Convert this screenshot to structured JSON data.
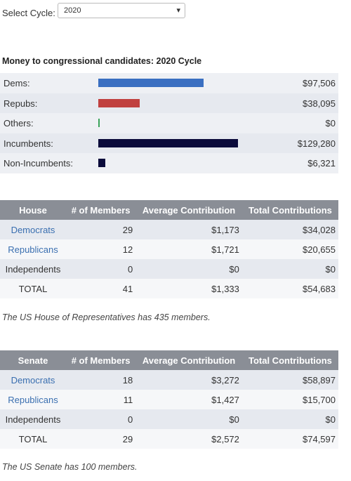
{
  "select": {
    "label": "Select Cycle:",
    "value": "2020"
  },
  "summary": {
    "title": "Money to congressional candidates: 2020 Cycle",
    "rows": [
      {
        "name": "Dems:",
        "value": 97506,
        "value_label": "$97,506",
        "color": "#3a6fc1"
      },
      {
        "name": "Repubs:",
        "value": 38095,
        "value_label": "$38,095",
        "color": "#c0403f"
      },
      {
        "name": "Others:",
        "value": 0,
        "value_label": "$0",
        "color": "#3aa35a"
      },
      {
        "name": "Incumbents:",
        "value": 129280,
        "value_label": "$129,280",
        "color": "#0b0b3b"
      },
      {
        "name": "Non-Incumbents:",
        "value": 6321,
        "value_label": "$6,321",
        "color": "#0b0b3b"
      }
    ]
  },
  "house": {
    "header": [
      "House",
      "# of Members",
      "Average Contribution",
      "Total Contributions"
    ],
    "rows": [
      [
        "Democrats",
        "29",
        "$1,173",
        "$34,028"
      ],
      [
        "Republicans",
        "12",
        "$1,721",
        "$20,655"
      ],
      [
        "Independents",
        "0",
        "$0",
        "$0"
      ],
      [
        "TOTAL",
        "41",
        "$1,333",
        "$54,683"
      ]
    ],
    "note": "The US House of Representatives has 435 members."
  },
  "senate": {
    "header": [
      "Senate",
      "# of Members",
      "Average Contribution",
      "Total Contributions"
    ],
    "rows": [
      [
        "Democrats",
        "18",
        "$3,272",
        "$58,897"
      ],
      [
        "Republicans",
        "11",
        "$1,427",
        "$15,700"
      ],
      [
        "Independents",
        "0",
        "$0",
        "$0"
      ],
      [
        "TOTAL",
        "29",
        "$2,572",
        "$74,597"
      ]
    ],
    "note": "The US Senate has 100 members."
  }
}
